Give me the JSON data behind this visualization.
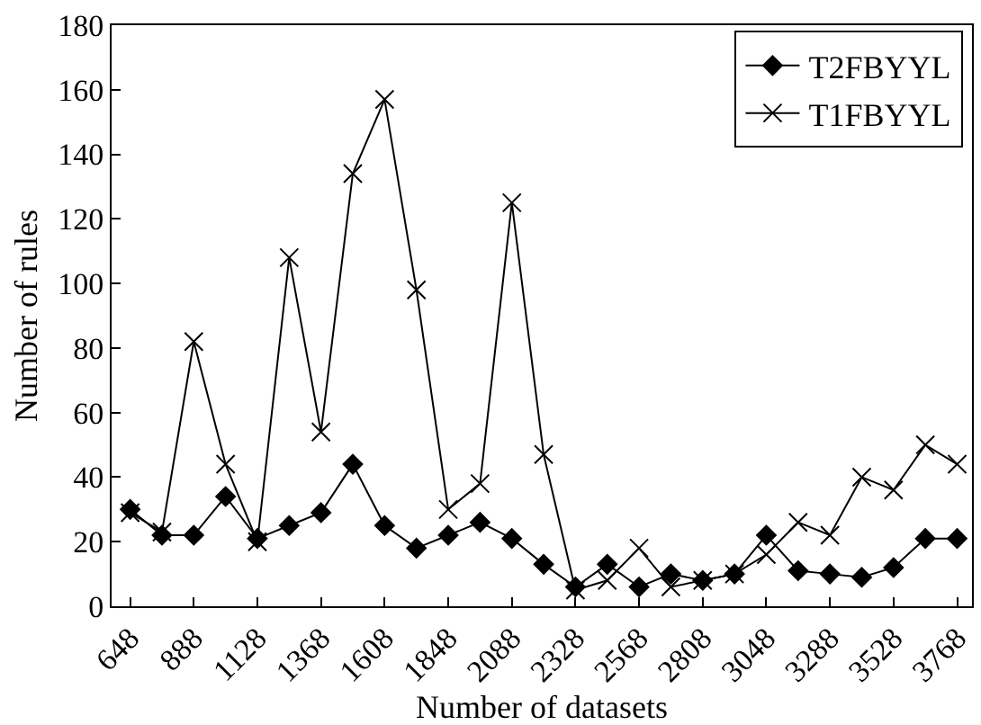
{
  "chart_data": {
    "type": "line",
    "xlabel": "Number of datasets",
    "ylabel": "Number of rules",
    "x": [
      648,
      768,
      888,
      1008,
      1128,
      1248,
      1368,
      1488,
      1608,
      1728,
      1848,
      1968,
      2088,
      2208,
      2328,
      2448,
      2568,
      2688,
      2808,
      2928,
      3048,
      3168,
      3288,
      3408,
      3528,
      3648,
      3768
    ],
    "series": [
      {
        "name": "T2FBYYL",
        "color": "#000000",
        "marker": "diamond",
        "values": [
          30,
          22,
          22,
          34,
          21,
          25,
          29,
          44,
          25,
          18,
          22,
          26,
          21,
          13,
          6,
          13,
          6,
          10,
          8,
          10,
          22,
          11,
          10,
          9,
          12,
          21,
          21
        ]
      },
      {
        "name": "T1FBYYL",
        "color": "#000000",
        "marker": "cross",
        "values": [
          29,
          23,
          82,
          44,
          20,
          108,
          54,
          134,
          157,
          98,
          30,
          38,
          125,
          47,
          5,
          8,
          18,
          6,
          8,
          10,
          16,
          26,
          22,
          40,
          36,
          50,
          44
        ]
      }
    ],
    "xlim": [
      578,
      3824
    ],
    "xticks": [
      648,
      888,
      1128,
      1368,
      1608,
      1848,
      2088,
      2328,
      2568,
      2808,
      3048,
      3288,
      3528,
      3768
    ],
    "ylim": [
      0,
      180
    ],
    "yticks": [
      0,
      20,
      40,
      60,
      80,
      100,
      120,
      140,
      160,
      180
    ],
    "legend": "top right",
    "line_style": "solid"
  }
}
